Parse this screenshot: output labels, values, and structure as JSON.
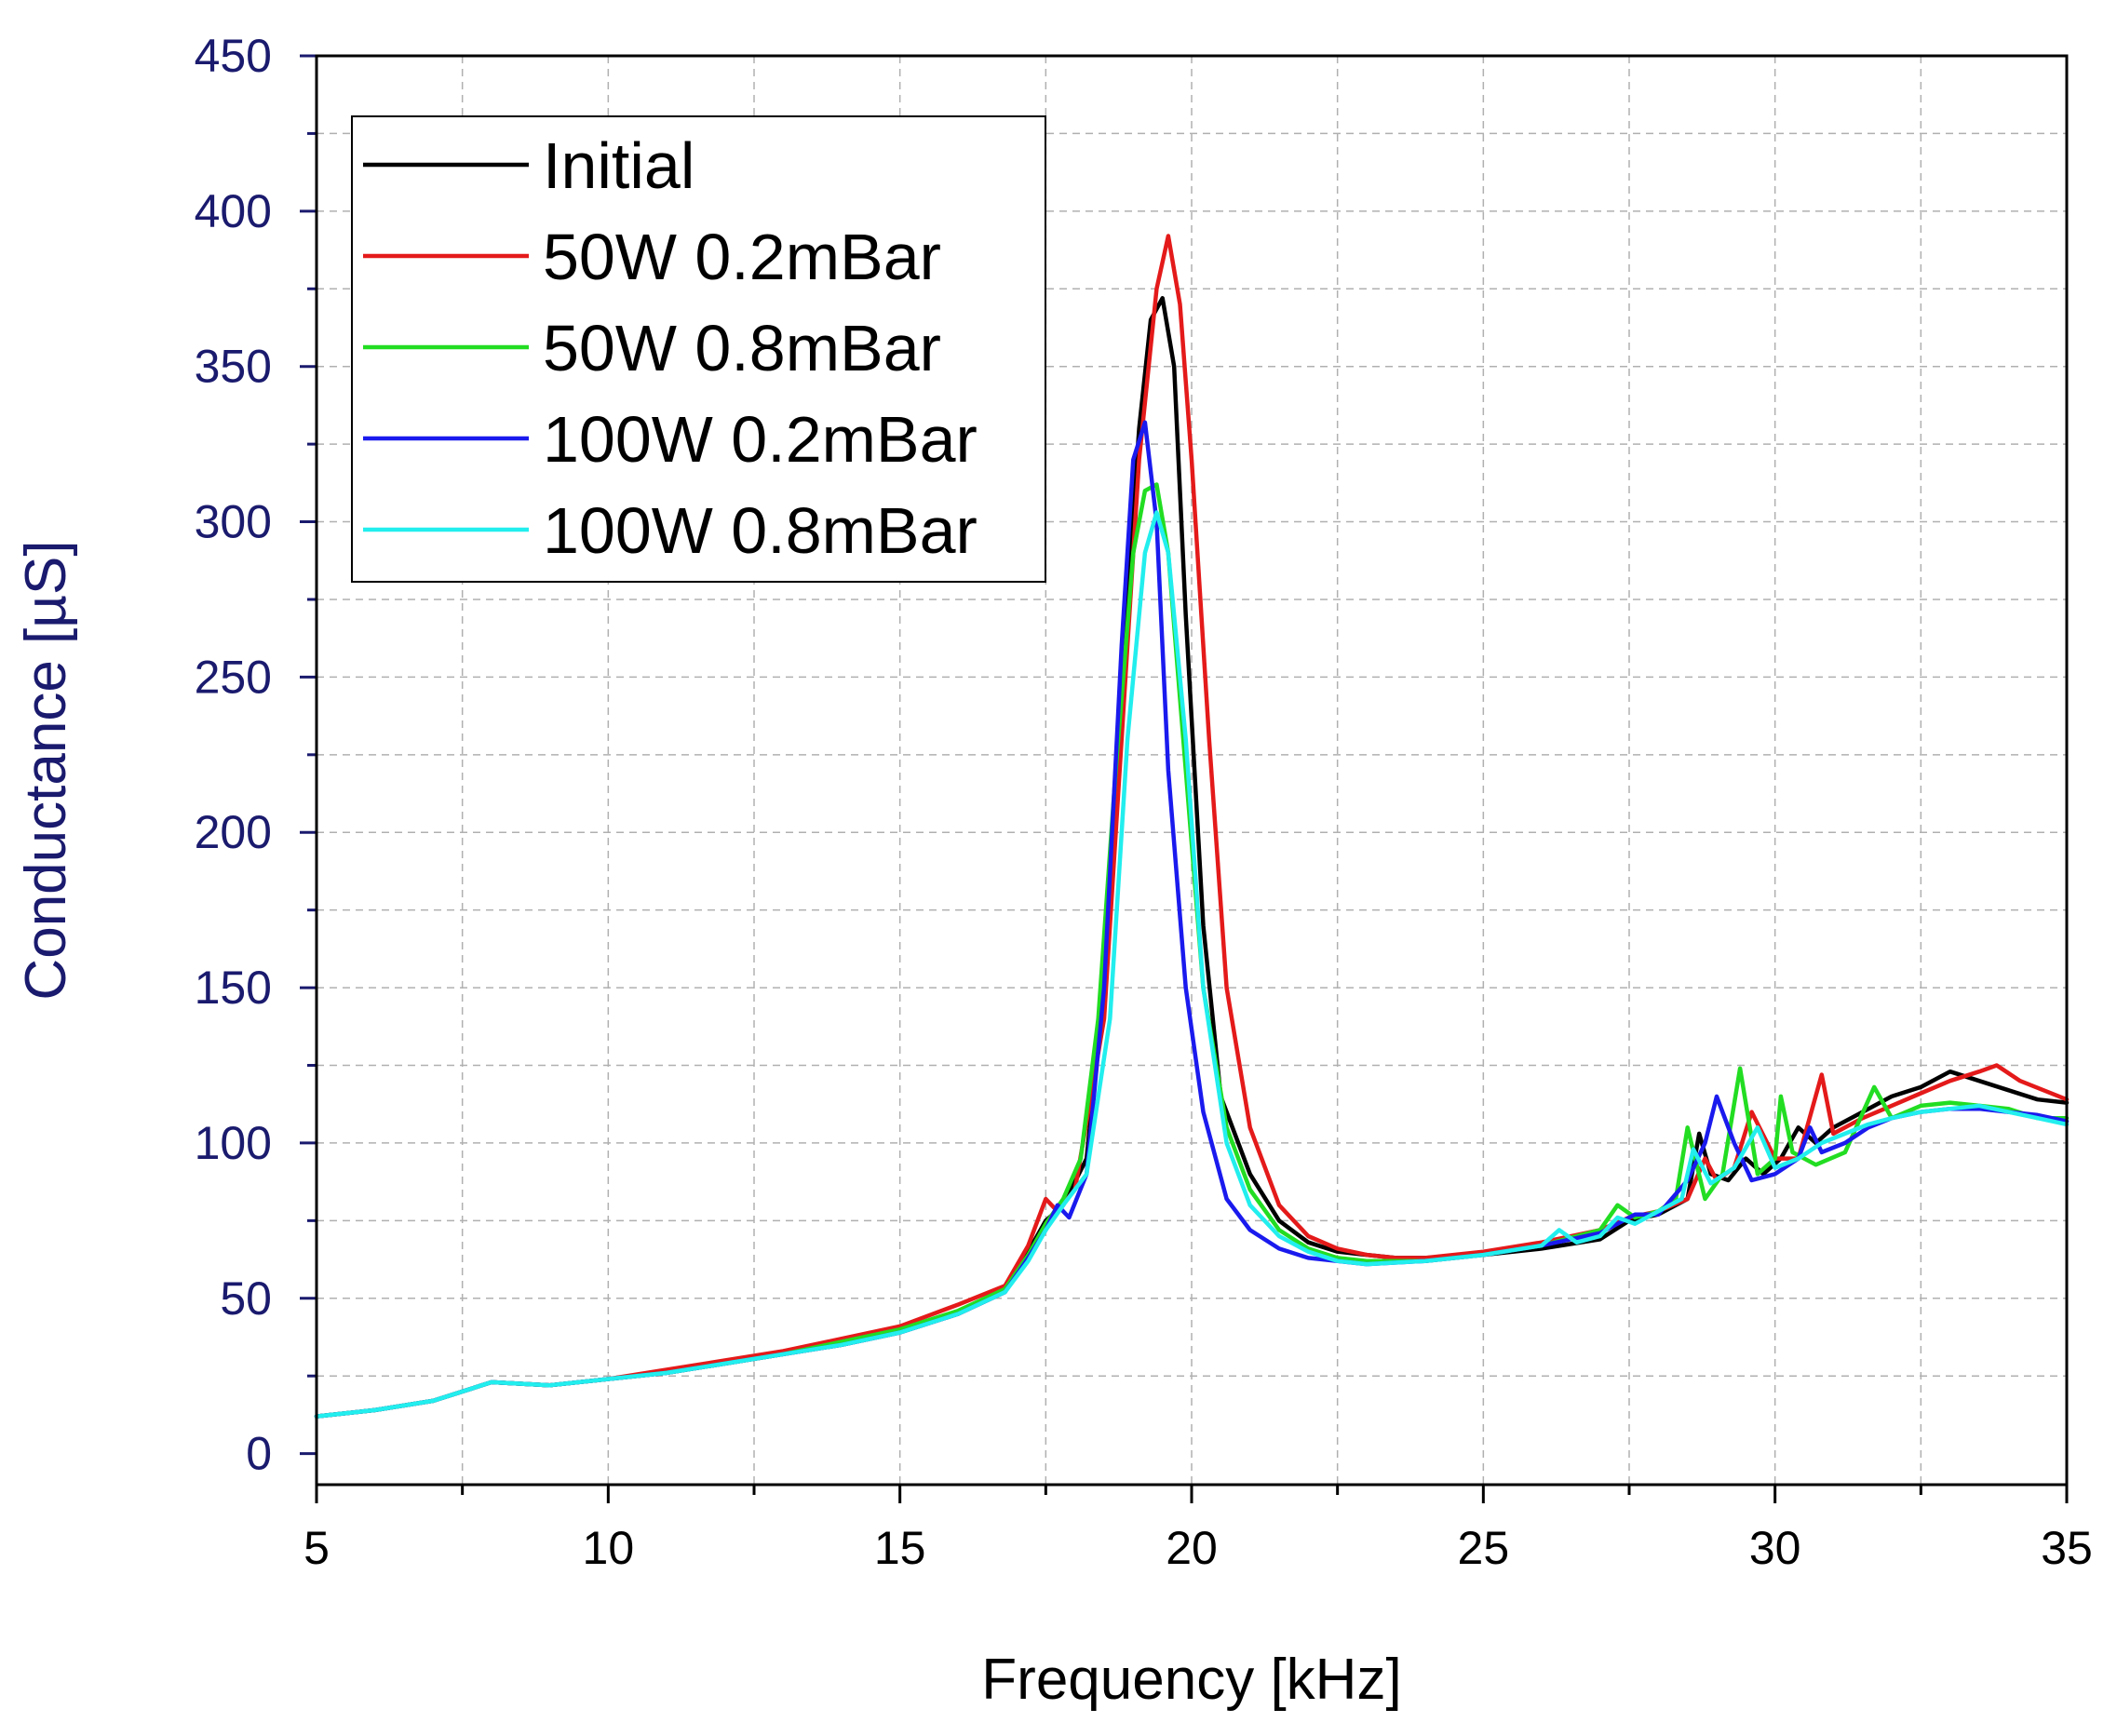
{
  "chart_data": {
    "type": "line",
    "title": "",
    "xlabel": "Frequency [kHz]",
    "ylabel": "Conductance [µS]",
    "xlim": [
      5,
      35
    ],
    "ylim": [
      -10,
      450
    ],
    "xticks": [
      5,
      10,
      15,
      20,
      25,
      30,
      35
    ],
    "yticks": [
      0,
      50,
      100,
      150,
      200,
      250,
      300,
      350,
      400,
      450
    ],
    "grid": true,
    "legend_position": "top-left",
    "series": [
      {
        "name": "Initial",
        "color": "#000000",
        "points": [
          [
            5,
            12
          ],
          [
            6,
            14
          ],
          [
            7,
            17
          ],
          [
            8,
            23
          ],
          [
            9,
            22
          ],
          [
            10,
            24
          ],
          [
            11,
            26
          ],
          [
            12,
            29
          ],
          [
            13,
            32
          ],
          [
            14,
            35
          ],
          [
            15,
            39
          ],
          [
            16,
            45
          ],
          [
            16.8,
            52
          ],
          [
            17.2,
            65
          ],
          [
            17.5,
            75
          ],
          [
            17.8,
            80
          ],
          [
            18.2,
            95
          ],
          [
            18.5,
            150
          ],
          [
            18.8,
            250
          ],
          [
            19.1,
            330
          ],
          [
            19.3,
            365
          ],
          [
            19.5,
            372
          ],
          [
            19.7,
            350
          ],
          [
            19.9,
            270
          ],
          [
            20.2,
            170
          ],
          [
            20.5,
            115
          ],
          [
            21,
            90
          ],
          [
            21.5,
            75
          ],
          [
            22,
            68
          ],
          [
            22.5,
            65
          ],
          [
            23,
            64
          ],
          [
            23.5,
            63
          ],
          [
            24,
            63
          ],
          [
            25,
            64
          ],
          [
            26,
            66
          ],
          [
            27,
            69
          ],
          [
            27.5,
            75
          ],
          [
            28,
            77
          ],
          [
            28.5,
            82
          ],
          [
            28.7,
            103
          ],
          [
            28.9,
            90
          ],
          [
            29.2,
            88
          ],
          [
            29.5,
            95
          ],
          [
            29.8,
            90
          ],
          [
            30.1,
            95
          ],
          [
            30.4,
            105
          ],
          [
            30.7,
            100
          ],
          [
            31,
            105
          ],
          [
            31.5,
            110
          ],
          [
            32,
            115
          ],
          [
            32.5,
            118
          ],
          [
            33,
            123
          ],
          [
            33.5,
            120
          ],
          [
            34,
            117
          ],
          [
            34.5,
            114
          ],
          [
            35,
            113
          ]
        ]
      },
      {
        "name": "50W 0.2mBar",
        "color": "#e41a1a",
        "points": [
          [
            5,
            12
          ],
          [
            6,
            14
          ],
          [
            7,
            17
          ],
          [
            8,
            23
          ],
          [
            9,
            22
          ],
          [
            10,
            24
          ],
          [
            11,
            27
          ],
          [
            12,
            30
          ],
          [
            13,
            33
          ],
          [
            14,
            37
          ],
          [
            15,
            41
          ],
          [
            16,
            48
          ],
          [
            16.8,
            54
          ],
          [
            17.2,
            67
          ],
          [
            17.5,
            82
          ],
          [
            17.7,
            78
          ],
          [
            18,
            85
          ],
          [
            18.5,
            140
          ],
          [
            18.8,
            230
          ],
          [
            19.1,
            320
          ],
          [
            19.4,
            375
          ],
          [
            19.6,
            392
          ],
          [
            19.8,
            370
          ],
          [
            20,
            320
          ],
          [
            20.3,
            230
          ],
          [
            20.6,
            150
          ],
          [
            21,
            105
          ],
          [
            21.5,
            80
          ],
          [
            22,
            70
          ],
          [
            22.5,
            66
          ],
          [
            23,
            64
          ],
          [
            23.5,
            63
          ],
          [
            24,
            63
          ],
          [
            25,
            65
          ],
          [
            26,
            68
          ],
          [
            27,
            72
          ],
          [
            27.5,
            76
          ],
          [
            28,
            78
          ],
          [
            28.5,
            82
          ],
          [
            28.8,
            95
          ],
          [
            29,
            88
          ],
          [
            29.3,
            92
          ],
          [
            29.6,
            110
          ],
          [
            30,
            95
          ],
          [
            30.4,
            95
          ],
          [
            30.8,
            122
          ],
          [
            31,
            103
          ],
          [
            31.5,
            108
          ],
          [
            32,
            112
          ],
          [
            32.5,
            116
          ],
          [
            33,
            120
          ],
          [
            33.5,
            123
          ],
          [
            33.8,
            125
          ],
          [
            34.2,
            120
          ],
          [
            35,
            114
          ]
        ]
      },
      {
        "name": "50W 0.8mBar",
        "color": "#22dd22",
        "points": [
          [
            5,
            12
          ],
          [
            6,
            14
          ],
          [
            7,
            17
          ],
          [
            8,
            23
          ],
          [
            9,
            22
          ],
          [
            10,
            24
          ],
          [
            11,
            26
          ],
          [
            12,
            29
          ],
          [
            13,
            32
          ],
          [
            14,
            36
          ],
          [
            15,
            40
          ],
          [
            16,
            46
          ],
          [
            16.8,
            53
          ],
          [
            17.2,
            64
          ],
          [
            17.5,
            74
          ],
          [
            17.8,
            82
          ],
          [
            18.1,
            95
          ],
          [
            18.4,
            140
          ],
          [
            18.7,
            220
          ],
          [
            19,
            290
          ],
          [
            19.2,
            310
          ],
          [
            19.4,
            312
          ],
          [
            19.6,
            290
          ],
          [
            19.9,
            220
          ],
          [
            20.2,
            150
          ],
          [
            20.6,
            105
          ],
          [
            21,
            85
          ],
          [
            21.5,
            72
          ],
          [
            22,
            66
          ],
          [
            22.5,
            63
          ],
          [
            23,
            62
          ],
          [
            24,
            62
          ],
          [
            25,
            64
          ],
          [
            26,
            67
          ],
          [
            27,
            72
          ],
          [
            27.3,
            80
          ],
          [
            27.6,
            76
          ],
          [
            28,
            78
          ],
          [
            28.3,
            82
          ],
          [
            28.5,
            105
          ],
          [
            28.8,
            82
          ],
          [
            29.1,
            90
          ],
          [
            29.4,
            124
          ],
          [
            29.7,
            90
          ],
          [
            30,
            95
          ],
          [
            30.1,
            115
          ],
          [
            30.3,
            97
          ],
          [
            30.7,
            93
          ],
          [
            31.2,
            97
          ],
          [
            31.7,
            118
          ],
          [
            32,
            108
          ],
          [
            32.5,
            112
          ],
          [
            33,
            113
          ],
          [
            33.5,
            112
          ],
          [
            34,
            111
          ],
          [
            34.5,
            108
          ],
          [
            35,
            108
          ]
        ]
      },
      {
        "name": "100W 0.2mBar",
        "color": "#1a1aee",
        "points": [
          [
            5,
            12
          ],
          [
            6,
            14
          ],
          [
            7,
            17
          ],
          [
            8,
            23
          ],
          [
            9,
            22
          ],
          [
            10,
            24
          ],
          [
            11,
            26
          ],
          [
            12,
            29
          ],
          [
            13,
            32
          ],
          [
            14,
            35
          ],
          [
            15,
            39
          ],
          [
            16,
            45
          ],
          [
            16.8,
            52
          ],
          [
            17.2,
            63
          ],
          [
            17.5,
            72
          ],
          [
            17.7,
            80
          ],
          [
            17.9,
            76
          ],
          [
            18.2,
            90
          ],
          [
            18.5,
            150
          ],
          [
            18.8,
            260
          ],
          [
            19,
            320
          ],
          [
            19.2,
            332
          ],
          [
            19.4,
            300
          ],
          [
            19.6,
            220
          ],
          [
            19.9,
            150
          ],
          [
            20.2,
            110
          ],
          [
            20.6,
            82
          ],
          [
            21,
            72
          ],
          [
            21.5,
            66
          ],
          [
            22,
            63
          ],
          [
            22.5,
            62
          ],
          [
            23,
            61
          ],
          [
            24,
            62
          ],
          [
            25,
            64
          ],
          [
            26,
            67
          ],
          [
            27,
            71
          ],
          [
            27.6,
            77
          ],
          [
            28,
            77
          ],
          [
            28.5,
            88
          ],
          [
            28.8,
            100
          ],
          [
            29,
            115
          ],
          [
            29.3,
            100
          ],
          [
            29.6,
            88
          ],
          [
            30,
            90
          ],
          [
            30.4,
            95
          ],
          [
            30.6,
            105
          ],
          [
            30.8,
            97
          ],
          [
            31.2,
            100
          ],
          [
            31.6,
            105
          ],
          [
            32,
            108
          ],
          [
            32.5,
            110
          ],
          [
            33,
            111
          ],
          [
            33.5,
            111
          ],
          [
            34,
            110
          ],
          [
            34.5,
            109
          ],
          [
            35,
            107
          ]
        ]
      },
      {
        "name": "100W 0.8mBar",
        "color": "#22eeee",
        "points": [
          [
            5,
            12
          ],
          [
            6,
            14
          ],
          [
            7,
            17
          ],
          [
            8,
            23
          ],
          [
            9,
            22
          ],
          [
            10,
            24
          ],
          [
            11,
            26
          ],
          [
            12,
            29
          ],
          [
            13,
            32
          ],
          [
            14,
            35
          ],
          [
            15,
            39
          ],
          [
            16,
            45
          ],
          [
            16.8,
            52
          ],
          [
            17.2,
            62
          ],
          [
            17.5,
            72
          ],
          [
            17.8,
            80
          ],
          [
            18.2,
            90
          ],
          [
            18.6,
            140
          ],
          [
            18.9,
            230
          ],
          [
            19.2,
            290
          ],
          [
            19.4,
            303
          ],
          [
            19.6,
            290
          ],
          [
            19.9,
            230
          ],
          [
            20.2,
            150
          ],
          [
            20.6,
            100
          ],
          [
            21,
            80
          ],
          [
            21.5,
            70
          ],
          [
            22,
            65
          ],
          [
            22.5,
            62
          ],
          [
            23,
            61
          ],
          [
            24,
            62
          ],
          [
            25,
            64
          ],
          [
            26,
            67
          ],
          [
            26.3,
            72
          ],
          [
            26.6,
            68
          ],
          [
            27,
            70
          ],
          [
            27.3,
            76
          ],
          [
            27.6,
            74
          ],
          [
            28,
            78
          ],
          [
            28.4,
            82
          ],
          [
            28.6,
            98
          ],
          [
            28.9,
            87
          ],
          [
            29.3,
            92
          ],
          [
            29.7,
            105
          ],
          [
            30,
            92
          ],
          [
            30.4,
            95
          ],
          [
            30.8,
            100
          ],
          [
            31.2,
            103
          ],
          [
            31.6,
            106
          ],
          [
            32,
            108
          ],
          [
            32.5,
            110
          ],
          [
            33,
            111
          ],
          [
            33.5,
            112
          ],
          [
            34,
            110
          ],
          [
            34.5,
            108
          ],
          [
            35,
            106
          ]
        ]
      }
    ]
  }
}
